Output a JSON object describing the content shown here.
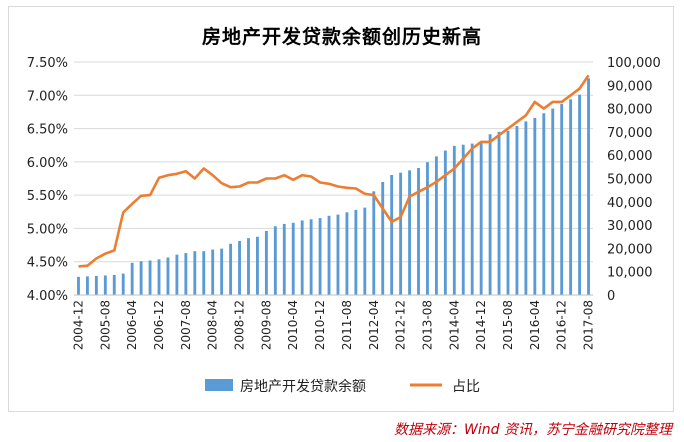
{
  "source_note": "数据来源：Wind 资讯，苏宁金融研究院整理",
  "colors": {
    "bars": "#5b9bd5",
    "line": "#ed7d31",
    "grid": "#d9d9d9",
    "source": "#c0000a"
  },
  "chart_data": {
    "type": "bar+line",
    "title": "房地产开发贷款余额创历史新高",
    "xlabel": "",
    "ylabel_left": "",
    "ylabel_right": "",
    "grid": true,
    "legend_position": "bottom",
    "left_axis": {
      "min": 0.04,
      "max": 0.075,
      "step": 0.005,
      "tick_labels": [
        "4.00%",
        "4.50%",
        "5.00%",
        "5.50%",
        "6.00%",
        "6.50%",
        "7.00%",
        "7.50%"
      ]
    },
    "right_axis": {
      "min": 0,
      "max": 100000,
      "step": 10000,
      "tick_labels": [
        "0",
        "10,000",
        "20,000",
        "30,000",
        "40,000",
        "50,000",
        "60,000",
        "70,000",
        "80,000",
        "90,000",
        "100,000"
      ]
    },
    "x_tick_labels": [
      "2004-12",
      "2005-08",
      "2006-04",
      "2006-12",
      "2007-08",
      "2008-04",
      "2008-12",
      "2009-08",
      "2010-04",
      "2010-12",
      "2011-08",
      "2012-04",
      "2012-12",
      "2013-08",
      "2014-04",
      "2014-12",
      "2015-08",
      "2016-04",
      "2016-12",
      "2017-08"
    ],
    "series": [
      {
        "name": "房地产开发贷款余额",
        "type": "bar",
        "axis": "right",
        "values": [
          7800,
          8000,
          8200,
          8400,
          8600,
          9200,
          13800,
          14500,
          14800,
          15300,
          16100,
          17300,
          18000,
          18800,
          18800,
          19500,
          19900,
          22000,
          23200,
          24400,
          25000,
          27500,
          29500,
          30500,
          31000,
          32000,
          32500,
          33000,
          34000,
          34500,
          35500,
          36500,
          37500,
          44500,
          48500,
          51500,
          52500,
          53500,
          54500,
          57000,
          59500,
          62000,
          64000,
          64500,
          65000,
          65500,
          69000,
          70000,
          70500,
          72500,
          74500,
          76000,
          78000,
          80000,
          82000,
          84000,
          86000,
          93000
        ]
      },
      {
        "name": "占比",
        "type": "line",
        "axis": "left",
        "values": [
          0.0443,
          0.0444,
          0.0455,
          0.0462,
          0.0467,
          0.0524,
          0.0537,
          0.0549,
          0.055,
          0.0576,
          0.058,
          0.0582,
          0.0586,
          0.0575,
          0.059,
          0.058,
          0.0568,
          0.0562,
          0.0563,
          0.0569,
          0.0569,
          0.0575,
          0.0575,
          0.058,
          0.0573,
          0.058,
          0.0578,
          0.0569,
          0.0567,
          0.0563,
          0.0561,
          0.056,
          0.0552,
          0.055,
          0.053,
          0.051,
          0.0517,
          0.0548,
          0.0555,
          0.0562,
          0.057,
          0.058,
          0.059,
          0.0605,
          0.062,
          0.063,
          0.063,
          0.064,
          0.065,
          0.066,
          0.067,
          0.069,
          0.068,
          0.069,
          0.069,
          0.07,
          0.071,
          0.073
        ]
      }
    ]
  }
}
